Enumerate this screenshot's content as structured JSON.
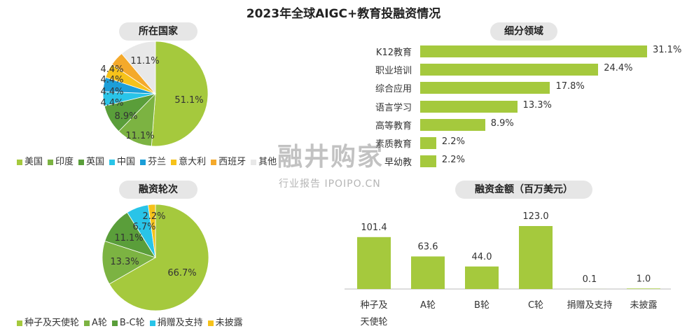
{
  "title": "2023年全球AIGC+教育投融资情况",
  "watermark": {
    "main": "融井购家",
    "sub": "行业报告 IPOIPO.CN"
  },
  "colors": {
    "green": "#a5c93d",
    "mid_green": "#7cb342",
    "dark_green": "#5a9e3a",
    "cyan": "#29c4e8",
    "blue": "#1c9ed8",
    "yellow": "#f6c21a",
    "orange": "#f4a92b",
    "grey": "#e8e8e8"
  },
  "chart_data": [
    {
      "type": "pie",
      "title": "所在国家",
      "categories": [
        "美国",
        "印度",
        "英国",
        "中国",
        "芬兰",
        "意大利",
        "西班牙",
        "其他"
      ],
      "values": [
        51.1,
        11.1,
        8.9,
        4.4,
        4.4,
        4.4,
        4.4,
        11.1
      ],
      "labels": [
        "51.1%",
        "11.1%",
        "8.9%",
        "4.4%",
        "4.4%",
        "4.4%",
        "4.4%",
        "11.1%"
      ],
      "legend": "bottom"
    },
    {
      "type": "bar",
      "orientation": "horizontal",
      "title": "细分领域",
      "categories": [
        "K12教育",
        "职业培训",
        "综合应用",
        "语言学习",
        "高等教育",
        "素质教育",
        "早幼教"
      ],
      "values": [
        31.1,
        24.4,
        17.8,
        13.3,
        8.9,
        2.2,
        2.2
      ],
      "labels": [
        "31.1%",
        "24.4%",
        "17.8%",
        "13.3%",
        "8.9%",
        "2.2%",
        "2.2%"
      ]
    },
    {
      "type": "pie",
      "title": "融资轮次",
      "categories": [
        "种子及天使轮",
        "A轮",
        "B-C轮",
        "捐赠及支持",
        "未披露"
      ],
      "values": [
        66.7,
        13.3,
        11.1,
        6.7,
        2.2
      ],
      "labels": [
        "66.7%",
        "13.3%",
        "11.1%",
        "6.7%",
        "2.2%"
      ],
      "legend": "bottom"
    },
    {
      "type": "bar",
      "title": "融资金额（百万美元）",
      "categories": [
        "种子及天使轮",
        "A轮",
        "B轮",
        "C轮",
        "捐赠及支持",
        "未披露"
      ],
      "category_lines": [
        [
          "种子及",
          "天使轮"
        ],
        [
          "A轮"
        ],
        [
          "B轮"
        ],
        [
          "C轮"
        ],
        [
          "捐赠及支持"
        ],
        [
          "未披露"
        ]
      ],
      "values": [
        101.4,
        63.6,
        44.0,
        123.0,
        0.1,
        1.0
      ],
      "labels": [
        "101.4",
        "63.6",
        "44.0",
        "123.0",
        "0.1",
        "1.0"
      ]
    }
  ]
}
